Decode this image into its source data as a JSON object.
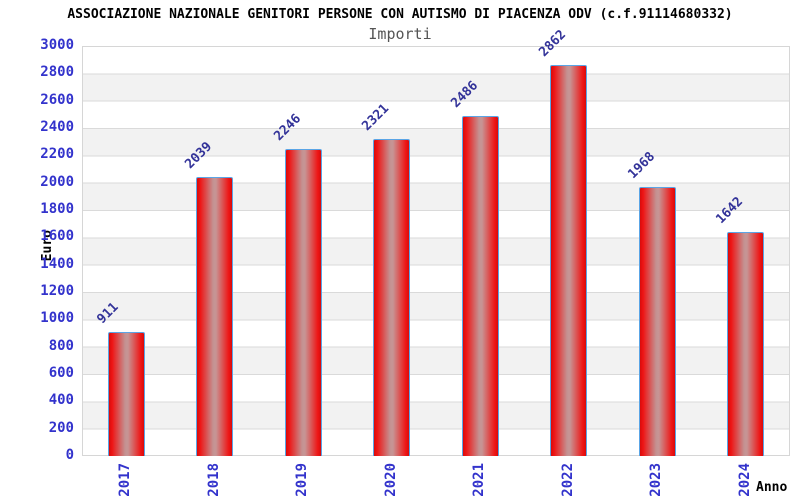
{
  "header": {
    "title": "ASSOCIAZIONE NAZIONALE GENITORI PERSONE CON AUTISMO DI PIACENZA ODV (c.f.91114680332)",
    "subtitle": "Importi"
  },
  "chart_data": {
    "type": "bar",
    "title": "Importi",
    "categories": [
      "2017",
      "2018",
      "2019",
      "2020",
      "2021",
      "2022",
      "2023",
      "2024"
    ],
    "values": [
      911,
      2039,
      2246,
      2321,
      2486,
      2862,
      1968,
      1642
    ],
    "xlabel": "Anno",
    "ylabel": "Euro",
    "ylim": [
      0,
      3000
    ],
    "ytick_step": 200,
    "grid": "horizontal",
    "legend": "none",
    "band_fill": "alternating horizontal stripes",
    "colors": {
      "bar_edge": "#d80b0b",
      "bar_bright": "#ee1515",
      "bar_center_highlight": "#c49292",
      "bar_border": "#5aa5e6",
      "axis_tick_blue": "#3333cc",
      "value_label_navy": "#333399",
      "band_gray": "#f2f2f2",
      "gridline_gray": "#dadada",
      "title_black": "#000000",
      "subtitle_gray": "#555555"
    }
  }
}
